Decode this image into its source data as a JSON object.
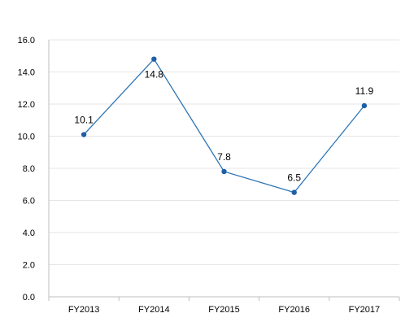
{
  "chart_data": {
    "type": "line",
    "categories": [
      "FY2013",
      "FY2014",
      "FY2015",
      "FY2016",
      "FY2017"
    ],
    "series": [
      {
        "values": [
          10.1,
          14.8,
          7.8,
          6.5,
          11.9
        ]
      }
    ],
    "data_labels": [
      "10.1",
      "14.8",
      "7.8",
      "6.5",
      "11.9"
    ],
    "y_ticks": [
      "0.0",
      "2.0",
      "4.0",
      "6.0",
      "8.0",
      "10.0",
      "12.0",
      "14.0",
      "16.0"
    ],
    "ylim": [
      0,
      16
    ],
    "grid": true,
    "legend": "none",
    "line_color": "#2e75b6",
    "marker_color": "#1f5fa8",
    "grid_color": "#e6e6e6",
    "axis_color": "#bfbfbf"
  }
}
